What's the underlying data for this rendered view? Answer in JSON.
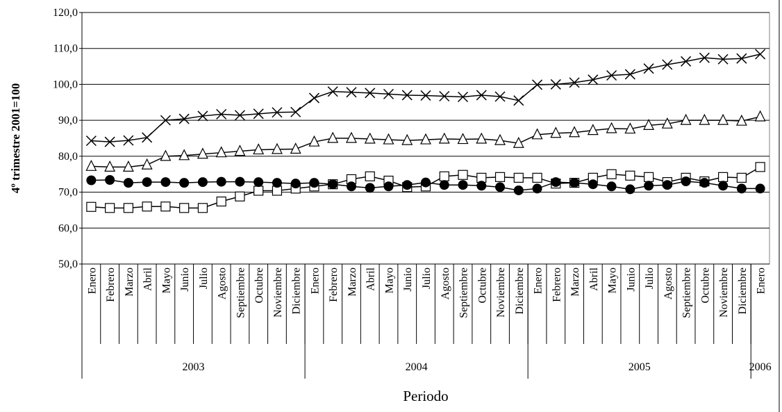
{
  "chart_data": {
    "type": "line",
    "y_label": "4º trimestre 2001=100",
    "x_label": "Periodo",
    "categories": [
      "Enero",
      "Febrero",
      "Marzo",
      "Abril",
      "Mayo",
      "Junio",
      "Julio",
      "Agosto",
      "Septiembre",
      "Octubre",
      "Noviembre",
      "Diciembre",
      "Enero",
      "Febrero",
      "Marzo",
      "Abril",
      "Mayo",
      "Junio",
      "Julio",
      "Agosto",
      "Septiembre",
      "Octubre",
      "Noviembre",
      "Diciembre",
      "Enero",
      "Febrero",
      "Marzo",
      "Abril",
      "Mayo",
      "Junio",
      "Julio",
      "Agosto",
      "Septiembre",
      "Octubre",
      "Noviembre",
      "Diciembre",
      "Enero"
    ],
    "groups": [
      {
        "label": "2003",
        "count": 12
      },
      {
        "label": "2004",
        "count": 12
      },
      {
        "label": "2005",
        "count": 12
      },
      {
        "label": "2006",
        "count": 1
      }
    ],
    "ylim": [
      50,
      120
    ],
    "yticks": [
      {
        "value": 50,
        "label": "50,0"
      },
      {
        "value": 60,
        "label": "60,0"
      },
      {
        "value": 70,
        "label": "70,0"
      },
      {
        "value": 80,
        "label": "80,0"
      },
      {
        "value": 90,
        "label": "90,0"
      },
      {
        "value": 100,
        "label": "100,0"
      },
      {
        "value": 110,
        "label": "110,0"
      },
      {
        "value": 120,
        "label": "120,0"
      }
    ],
    "grid": true,
    "series": [
      {
        "color": "#000000",
        "marker": "cross",
        "values": [
          84.3,
          84.0,
          84.4,
          85.2,
          90.0,
          90.4,
          91.2,
          91.7,
          91.4,
          91.8,
          92.2,
          92.3,
          96.2,
          98.0,
          97.8,
          97.6,
          97.3,
          97.0,
          96.9,
          96.7,
          96.5,
          97.0,
          96.6,
          95.5,
          99.9,
          100.0,
          100.5,
          101.3,
          102.5,
          102.8,
          104.4,
          105.5,
          106.4,
          107.4,
          107.0,
          107.2,
          108.4
        ]
      },
      {
        "color": "#000000",
        "marker": "triangle",
        "values": [
          77.2,
          77.0,
          77.0,
          77.6,
          80.0,
          80.2,
          80.6,
          81.0,
          81.4,
          81.8,
          81.9,
          82.0,
          84.0,
          85.0,
          85.0,
          84.8,
          84.6,
          84.4,
          84.6,
          84.8,
          84.7,
          84.8,
          84.4,
          83.6,
          86.0,
          86.4,
          86.6,
          87.2,
          87.7,
          87.6,
          88.6,
          89.0,
          90.0,
          90.0,
          90.0,
          89.8,
          91.0
        ]
      },
      {
        "color": "#000000",
        "marker": "square",
        "values": [
          65.9,
          65.6,
          65.6,
          66.0,
          66.0,
          65.6,
          65.6,
          67.4,
          68.8,
          70.4,
          70.4,
          71.0,
          71.6,
          72.2,
          73.6,
          74.4,
          73.2,
          71.4,
          71.6,
          74.4,
          74.8,
          74.0,
          74.2,
          74.0,
          74.0,
          72.4,
          72.6,
          74.0,
          75.0,
          74.6,
          74.2,
          72.8,
          74.0,
          73.0,
          74.2,
          74.0,
          77.0
        ]
      },
      {
        "color": "#000000",
        "marker": "circle",
        "values": [
          73.3,
          73.4,
          72.6,
          72.8,
          72.8,
          72.6,
          72.8,
          72.9,
          72.9,
          72.8,
          72.6,
          72.4,
          72.6,
          72.2,
          71.6,
          71.2,
          71.6,
          72.0,
          72.7,
          72.0,
          72.0,
          71.8,
          71.4,
          70.5,
          71.0,
          72.8,
          72.6,
          72.2,
          71.6,
          70.8,
          71.8,
          72.0,
          73.0,
          72.6,
          71.8,
          71.0,
          71.0
        ]
      }
    ]
  }
}
